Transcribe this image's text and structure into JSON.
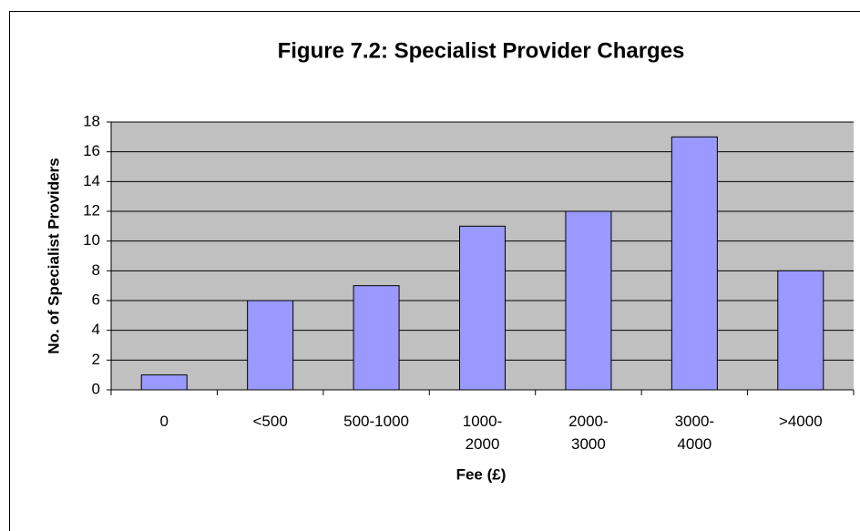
{
  "chart_data": {
    "type": "bar",
    "title": "Figure 7.2: Specialist Provider Charges",
    "x_label": "Fee (£)",
    "y_label": "No. of Specialist Providers",
    "categories": [
      "0",
      "<500",
      "500-1000",
      "1000-2000",
      "2000-3000",
      "3000-4000",
      ">4000"
    ],
    "values": [
      1,
      6,
      7,
      11,
      12,
      17,
      8
    ],
    "color": "#9999ff",
    "ylim": [
      0,
      18
    ],
    "yticks": [
      0,
      2,
      4,
      6,
      8,
      10,
      12,
      14,
      16,
      18
    ],
    "grid": true
  }
}
